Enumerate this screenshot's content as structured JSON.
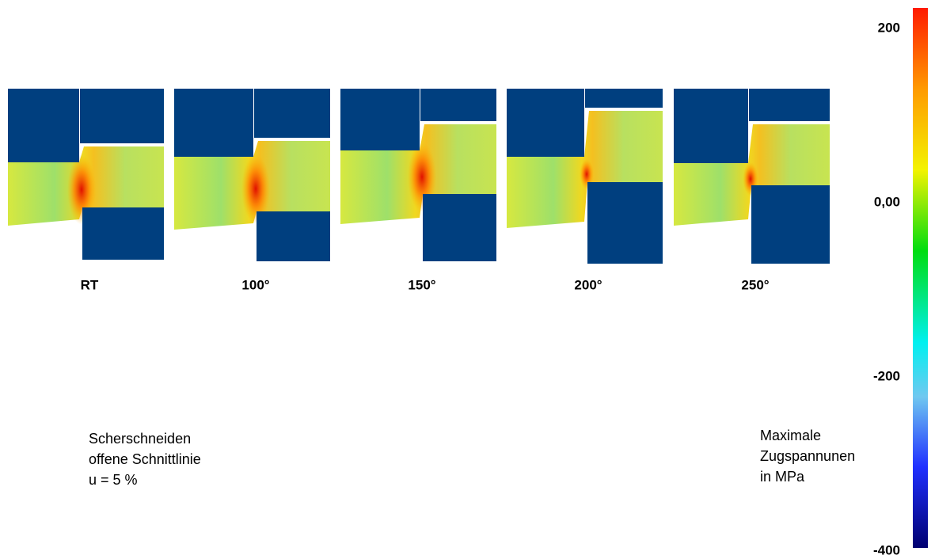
{
  "panels": [
    "RT",
    "100°",
    "150°",
    "200°",
    "250°"
  ],
  "note": [
    "Scherschneiden",
    "offene Schnittlinie",
    "u  = 5 %"
  ],
  "colorbar": {
    "title": [
      "Maximale",
      "Zugspannunen",
      "in MPa"
    ],
    "lim": [
      -400,
      220
    ],
    "ticks": [
      200,
      {
        "value": 0,
        "label": "0,00"
      },
      -200,
      -400
    ]
  }
}
